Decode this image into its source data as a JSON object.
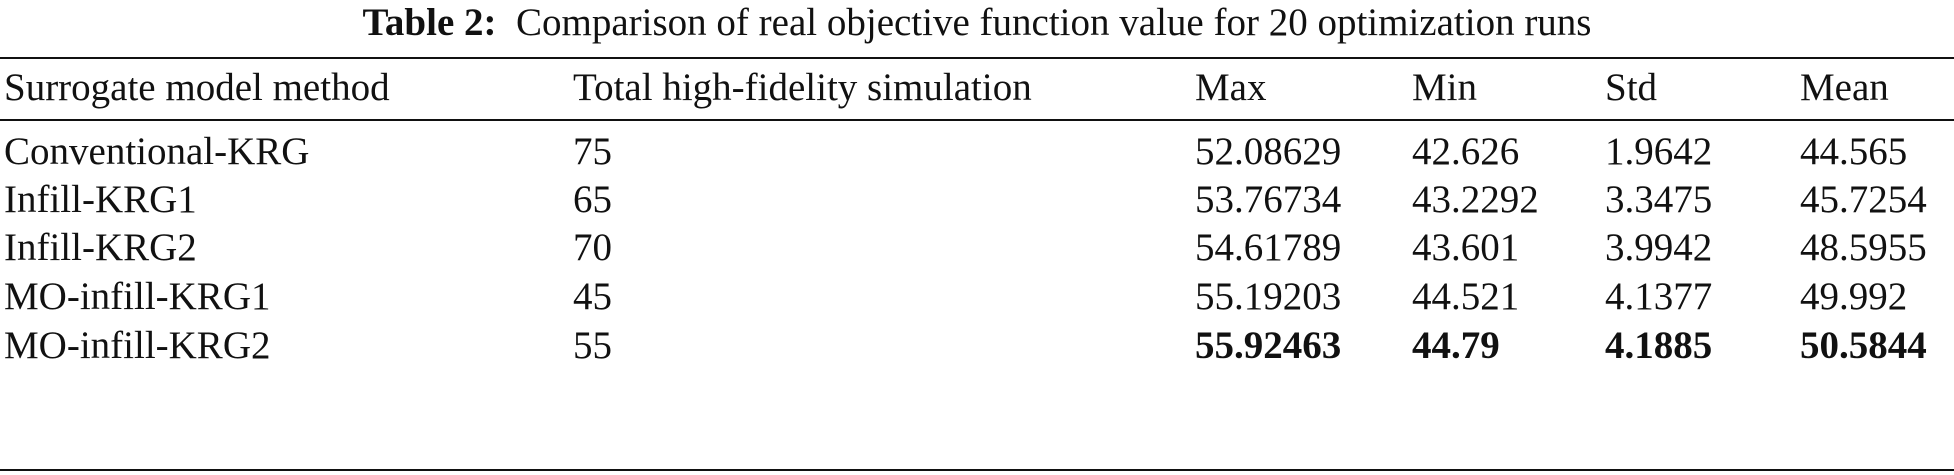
{
  "caption": {
    "label": "Table 2:",
    "text": "Comparison of real objective function value for 20 optimization runs"
  },
  "table": {
    "headers": [
      "Surrogate model method",
      "Total high-fidelity simulation",
      "Max",
      "Min",
      "Std",
      "Mean"
    ],
    "rows": [
      [
        "Conventional-KRG",
        "75",
        "52.08629",
        "42.626",
        "1.9642",
        "44.565"
      ],
      [
        "Infill-KRG1",
        "65",
        "53.76734",
        "43.2292",
        "3.3475",
        "45.7254"
      ],
      [
        "Infill-KRG2",
        "70",
        "54.61789",
        "43.601",
        "3.9942",
        "48.5955"
      ],
      [
        "MO-infill-KRG1",
        "45",
        "55.19203",
        "44.521",
        "4.1377",
        "49.992"
      ],
      [
        "MO-infill-KRG2",
        "55",
        "55.92463",
        "44.79",
        "4.1885",
        "50.5844"
      ]
    ],
    "bold_row_index": 4,
    "bold_columns": [
      2,
      3,
      4,
      5
    ]
  }
}
